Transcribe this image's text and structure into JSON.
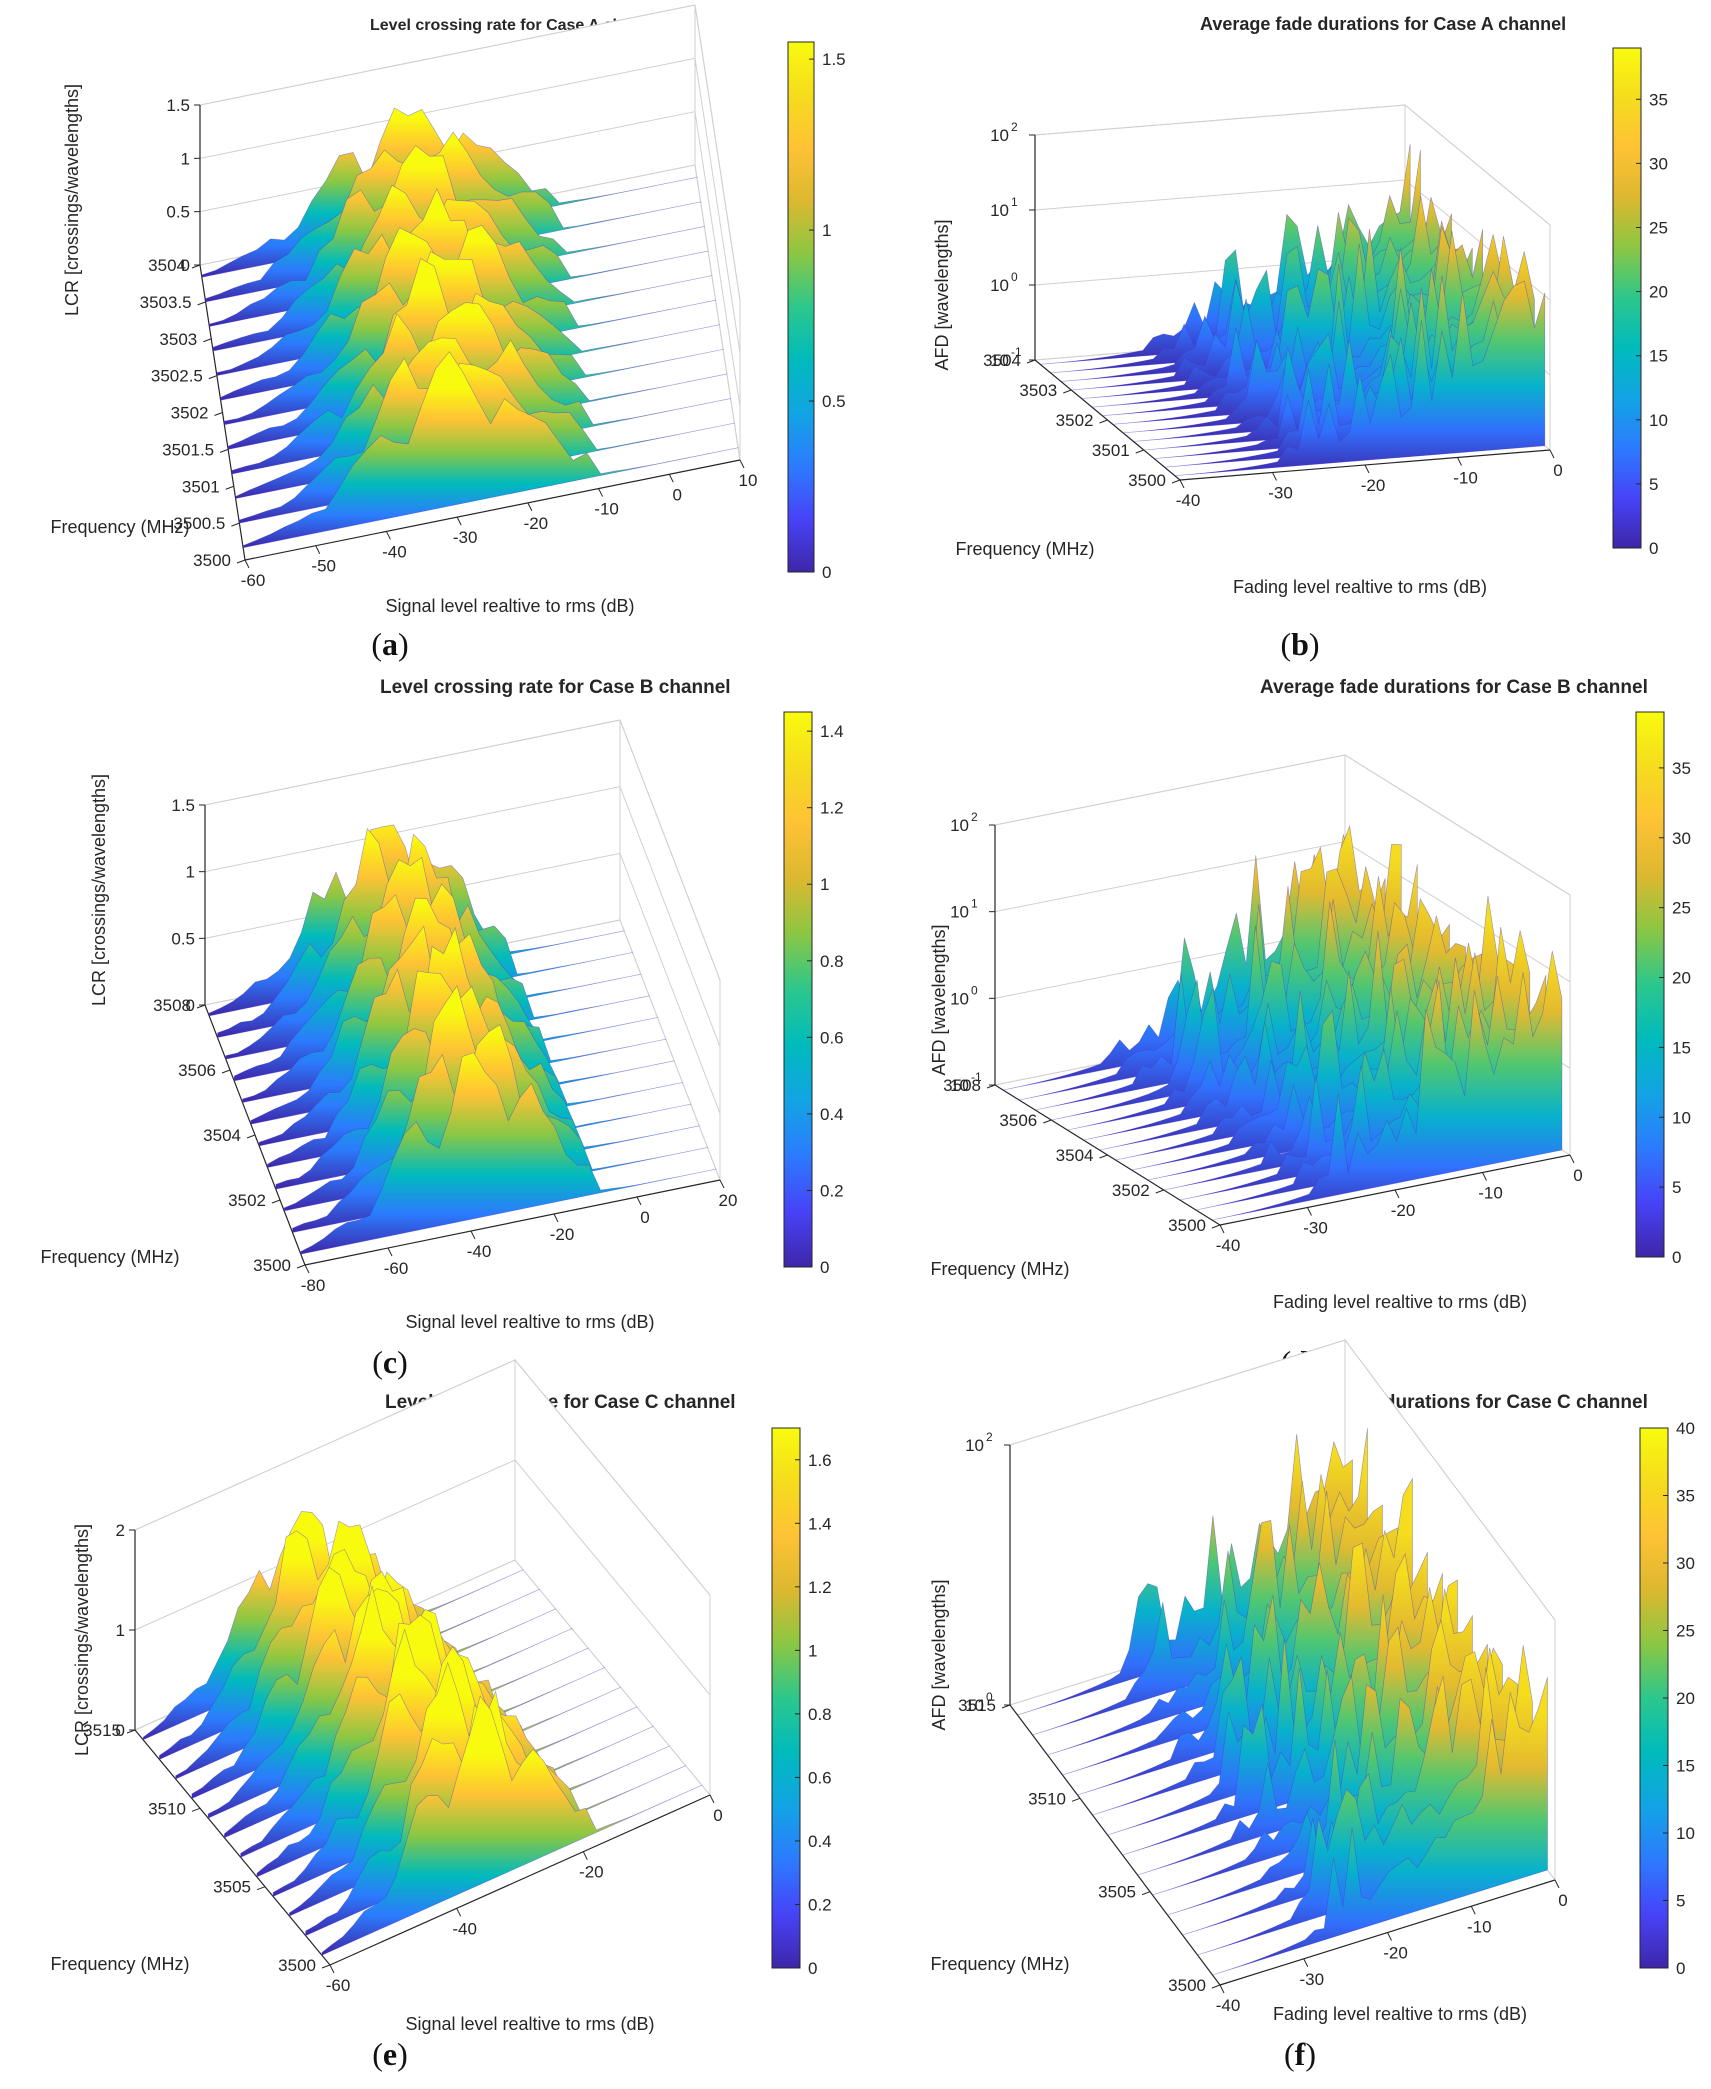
{
  "colors": {
    "colormap": [
      "#3e26a8",
      "#4743f8",
      "#2c7bfe",
      "#12a4e4",
      "#00bbbc",
      "#2cc78c",
      "#8bc743",
      "#dcb82f",
      "#fec235",
      "#f5dc1d",
      "#f9fb0e"
    ],
    "axis": "#262626",
    "grid": "#d0d0d0"
  },
  "chart_data": [
    {
      "id": "a",
      "type": "surface",
      "panel_label": "a",
      "title": "Level crossing rate for Case A channel",
      "xlabel": "Signal level realtive to rms (dB)",
      "ylabel": "Frequency (MHz)",
      "zlabel": "LCR [crossings/wavelengths]",
      "x_ticks": [
        "-60",
        "-50",
        "-40",
        "-30",
        "-20",
        "-10",
        "0",
        "10"
      ],
      "y_ticks": [
        "3500",
        "3500.5",
        "3501",
        "3501.5",
        "3502",
        "3502.5",
        "3503",
        "3503.5",
        "3504"
      ],
      "z_ticks": [
        "0",
        "0.5",
        "1",
        "1.5"
      ],
      "xlim": [
        -60,
        10
      ],
      "ylim": [
        3500,
        3504
      ],
      "zlim": [
        0,
        1.5
      ],
      "z_scale": "linear",
      "colorbar": {
        "range": [
          0,
          1.55
        ],
        "ticks": [
          "0",
          "0.5",
          "1",
          "1.5"
        ]
      },
      "peak_value": 1.55,
      "grid": true
    },
    {
      "id": "b",
      "type": "surface",
      "panel_label": "b",
      "title": "Average fade durations for Case A channel",
      "xlabel": "Fading level realtive to rms (dB)",
      "ylabel": "Frequency (MHz)",
      "zlabel": "AFD [wavelengths]",
      "x_ticks": [
        "-40",
        "-30",
        "-20",
        "-10",
        "0"
      ],
      "y_ticks": [
        "3500",
        "3501",
        "3502",
        "3503",
        "3504"
      ],
      "z_ticks": [
        "10",
        "10",
        "10",
        "10"
      ],
      "z_tick_exponents": [
        "-1",
        "0",
        "1",
        "2"
      ],
      "xlim": [
        -40,
        0
      ],
      "ylim": [
        3500,
        3504
      ],
      "zlim": [
        0.1,
        100
      ],
      "z_scale": "log",
      "colorbar": {
        "range": [
          0,
          39
        ],
        "ticks": [
          "0",
          "5",
          "10",
          "15",
          "20",
          "25",
          "30",
          "35"
        ]
      },
      "peak_value": 39,
      "grid": true
    },
    {
      "id": "c",
      "type": "surface",
      "panel_label": "c",
      "title": "Level crossing rate for Case B channel",
      "xlabel": "Signal level realtive to rms (dB)",
      "ylabel": "Frequency (MHz)",
      "zlabel": "LCR [crossings/wavelengths]",
      "x_ticks": [
        "-80",
        "-60",
        "-40",
        "-20",
        "0",
        "20"
      ],
      "y_ticks": [
        "3500",
        "3502",
        "3504",
        "3506",
        "3508"
      ],
      "z_ticks": [
        "0",
        "0.5",
        "1",
        "1.5"
      ],
      "xlim": [
        -80,
        20
      ],
      "ylim": [
        3500,
        3508
      ],
      "zlim": [
        0,
        1.5
      ],
      "z_scale": "linear",
      "colorbar": {
        "range": [
          0,
          1.45
        ],
        "ticks": [
          "0",
          "0.2",
          "0.4",
          "0.6",
          "0.8",
          "1",
          "1.2",
          "1.4"
        ]
      },
      "peak_value": 1.45,
      "grid": true
    },
    {
      "id": "d",
      "type": "surface",
      "panel_label": "d",
      "title": "Average fade durations for Case B channel",
      "xlabel": "Fading level realtive to rms (dB)",
      "ylabel": "Frequency (MHz)",
      "zlabel": "AFD [wavelengths]",
      "x_ticks": [
        "-40",
        "-30",
        "-20",
        "-10",
        "0"
      ],
      "y_ticks": [
        "3500",
        "3502",
        "3504",
        "3506",
        "3508"
      ],
      "z_ticks": [
        "10",
        "10",
        "10",
        "10"
      ],
      "z_tick_exponents": [
        "-1",
        "0",
        "1",
        "2"
      ],
      "xlim": [
        -40,
        0
      ],
      "ylim": [
        3500,
        3508
      ],
      "zlim": [
        0.1,
        100
      ],
      "z_scale": "log",
      "colorbar": {
        "range": [
          0,
          39
        ],
        "ticks": [
          "0",
          "5",
          "10",
          "15",
          "20",
          "25",
          "30",
          "35"
        ]
      },
      "peak_value": 39,
      "grid": true
    },
    {
      "id": "e",
      "type": "surface",
      "panel_label": "e",
      "title": "Level crossing rate for Case C channel",
      "xlabel": "Signal level realtive to rms (dB)",
      "ylabel": "Frequency (MHz)",
      "zlabel": "LCR [crossings/wavelengths]",
      "x_ticks": [
        "-60",
        "-40",
        "-20",
        "0"
      ],
      "y_ticks": [
        "3500",
        "3505",
        "3510",
        "3515"
      ],
      "z_ticks": [
        "0",
        "1",
        "2"
      ],
      "xlim": [
        -60,
        5
      ],
      "ylim": [
        3500,
        3515
      ],
      "zlim": [
        0,
        2
      ],
      "z_scale": "linear",
      "colorbar": {
        "range": [
          0,
          1.7
        ],
        "ticks": [
          "0",
          "0.2",
          "0.4",
          "0.6",
          "0.8",
          "1",
          "1.2",
          "1.4",
          "1.6"
        ]
      },
      "peak_value": 1.7,
      "grid": true
    },
    {
      "id": "f",
      "type": "surface",
      "panel_label": "f",
      "title": "Average fade durations for Case C channel",
      "xlabel": "Fading level realtive to rms (dB)",
      "ylabel": "Frequency (MHz)",
      "zlabel": "AFD [wavelengths]",
      "x_ticks": [
        "-40",
        "-30",
        "-20",
        "-10",
        "0"
      ],
      "y_ticks": [
        "3500",
        "3505",
        "3510",
        "3515"
      ],
      "z_ticks": [
        "10",
        "10"
      ],
      "z_tick_exponents": [
        "0",
        "2"
      ],
      "xlim": [
        -40,
        0
      ],
      "ylim": [
        3500,
        3515
      ],
      "zlim": [
        0.1,
        100
      ],
      "z_scale": "log",
      "colorbar": {
        "range": [
          0,
          40
        ],
        "ticks": [
          "0",
          "5",
          "10",
          "15",
          "20",
          "25",
          "30",
          "35",
          "40"
        ]
      },
      "peak_value": 40,
      "grid": true
    }
  ]
}
